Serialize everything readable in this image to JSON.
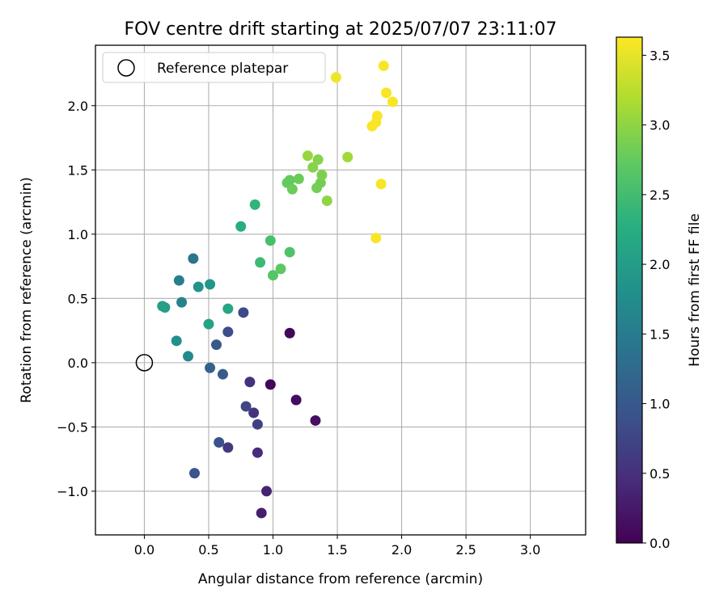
{
  "chart_data": {
    "type": "scatter",
    "title": "FOV centre drift starting at 2025/07/07 23:11:07",
    "xlabel": "Angular distance from reference (arcmin)",
    "ylabel": "Rotation from reference (arcmin)",
    "xlim": [
      -0.38,
      3.43
    ],
    "ylim": [
      -1.34,
      2.47
    ],
    "xticks": [
      0.0,
      0.5,
      1.0,
      1.5,
      2.0,
      2.5,
      3.0
    ],
    "xtick_labels": [
      "0.0",
      "0.5",
      "1.0",
      "1.5",
      "2.0",
      "2.5",
      "3.0"
    ],
    "yticks": [
      -1.0,
      -0.5,
      0.0,
      0.5,
      1.0,
      1.5,
      2.0
    ],
    "ytick_labels": [
      "−1.0",
      "−0.5",
      "0.0",
      "0.5",
      "1.0",
      "1.5",
      "2.0"
    ],
    "grid": true,
    "legend": {
      "placement": "top-left",
      "entries": [
        "Reference platepar"
      ]
    },
    "reference_point": {
      "x": 0.0,
      "y": 0.0
    },
    "colorbar": {
      "label": "Hours from first FF file",
      "range": [
        0.0,
        3.63
      ],
      "ticks": [
        0.0,
        0.5,
        1.0,
        1.5,
        2.0,
        2.5,
        3.0,
        3.5
      ],
      "tick_labels": [
        "0.0",
        "0.5",
        "1.0",
        "1.5",
        "2.0",
        "2.5",
        "3.0",
        "3.5"
      ],
      "colormap": "viridis"
    },
    "points": [
      {
        "x": 1.13,
        "y": 0.23,
        "c": 0.05
      },
      {
        "x": 0.98,
        "y": -0.17,
        "c": 0.05
      },
      {
        "x": 1.18,
        "y": -0.29,
        "c": 0.1
      },
      {
        "x": 1.33,
        "y": -0.45,
        "c": 0.15
      },
      {
        "x": 0.91,
        "y": -1.17,
        "c": 0.3
      },
      {
        "x": 0.95,
        "y": -1.0,
        "c": 0.35
      },
      {
        "x": 0.88,
        "y": -0.7,
        "c": 0.45
      },
      {
        "x": 0.82,
        "y": -0.15,
        "c": 0.5
      },
      {
        "x": 0.85,
        "y": -0.39,
        "c": 0.55
      },
      {
        "x": 0.65,
        "y": -0.66,
        "c": 0.6
      },
      {
        "x": 0.88,
        "y": -0.48,
        "c": 0.7
      },
      {
        "x": 0.79,
        "y": -0.34,
        "c": 0.75
      },
      {
        "x": 0.77,
        "y": 0.39,
        "c": 0.8
      },
      {
        "x": 0.65,
        "y": 0.24,
        "c": 0.85
      },
      {
        "x": 0.58,
        "y": -0.62,
        "c": 0.9
      },
      {
        "x": 0.39,
        "y": -0.86,
        "c": 0.95
      },
      {
        "x": 0.56,
        "y": 0.14,
        "c": 1.0
      },
      {
        "x": 0.61,
        "y": -0.09,
        "c": 1.05
      },
      {
        "x": 0.51,
        "y": -0.04,
        "c": 1.15
      },
      {
        "x": 0.38,
        "y": 0.81,
        "c": 1.4
      },
      {
        "x": 0.27,
        "y": 0.64,
        "c": 1.55
      },
      {
        "x": 0.29,
        "y": 0.47,
        "c": 1.6
      },
      {
        "x": 0.34,
        "y": 0.05,
        "c": 1.7
      },
      {
        "x": 0.25,
        "y": 0.17,
        "c": 1.8
      },
      {
        "x": 0.42,
        "y": 0.59,
        "c": 1.85
      },
      {
        "x": 0.51,
        "y": 0.61,
        "c": 1.9
      },
      {
        "x": 0.16,
        "y": 0.43,
        "c": 2.0
      },
      {
        "x": 0.14,
        "y": 0.44,
        "c": 2.05
      },
      {
        "x": 0.5,
        "y": 0.3,
        "c": 2.1
      },
      {
        "x": 0.65,
        "y": 0.42,
        "c": 2.15
      },
      {
        "x": 0.75,
        "y": 1.06,
        "c": 2.25
      },
      {
        "x": 0.86,
        "y": 1.23,
        "c": 2.35
      },
      {
        "x": 0.9,
        "y": 0.78,
        "c": 2.45
      },
      {
        "x": 0.98,
        "y": 0.95,
        "c": 2.55
      },
      {
        "x": 1.13,
        "y": 0.86,
        "c": 2.6
      },
      {
        "x": 1.0,
        "y": 0.68,
        "c": 2.65
      },
      {
        "x": 1.06,
        "y": 0.73,
        "c": 2.7
      },
      {
        "x": 1.11,
        "y": 1.4,
        "c": 2.75
      },
      {
        "x": 1.13,
        "y": 1.42,
        "c": 2.75
      },
      {
        "x": 1.15,
        "y": 1.35,
        "c": 2.8
      },
      {
        "x": 1.2,
        "y": 1.43,
        "c": 2.8
      },
      {
        "x": 1.34,
        "y": 1.36,
        "c": 2.85
      },
      {
        "x": 1.37,
        "y": 1.4,
        "c": 2.85
      },
      {
        "x": 1.38,
        "y": 1.46,
        "c": 2.9
      },
      {
        "x": 1.31,
        "y": 1.52,
        "c": 2.95
      },
      {
        "x": 1.35,
        "y": 1.58,
        "c": 2.95
      },
      {
        "x": 1.42,
        "y": 1.26,
        "c": 3.0
      },
      {
        "x": 1.27,
        "y": 1.61,
        "c": 3.05
      },
      {
        "x": 1.58,
        "y": 1.6,
        "c": 3.1
      },
      {
        "x": 1.49,
        "y": 2.22,
        "c": 3.55
      },
      {
        "x": 1.86,
        "y": 2.31,
        "c": 3.6
      },
      {
        "x": 1.88,
        "y": 2.1,
        "c": 3.6
      },
      {
        "x": 1.93,
        "y": 2.03,
        "c": 3.6
      },
      {
        "x": 1.81,
        "y": 1.92,
        "c": 3.6
      },
      {
        "x": 1.8,
        "y": 1.87,
        "c": 3.6
      },
      {
        "x": 1.77,
        "y": 1.84,
        "c": 3.6
      },
      {
        "x": 1.84,
        "y": 1.39,
        "c": 3.6
      },
      {
        "x": 1.8,
        "y": 0.97,
        "c": 3.6
      }
    ]
  }
}
